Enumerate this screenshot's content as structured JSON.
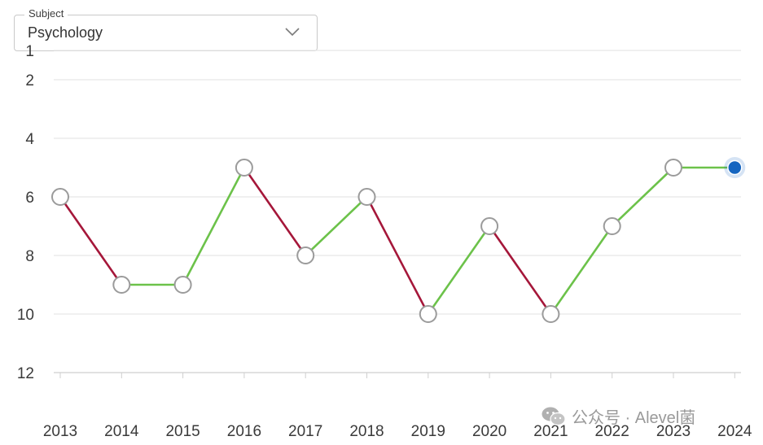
{
  "dropdown": {
    "label": "Subject",
    "value": "Psychology"
  },
  "watermark_text": "公众号 · Alevel菌",
  "colors": {
    "up": "#6cc24a",
    "down": "#a5173a",
    "grid": "#e6e6e6",
    "current": "#1565c0"
  },
  "chart_data": {
    "type": "line",
    "title": "",
    "xlabel": "",
    "ylabel": "",
    "y_inverted": true,
    "ylim": [
      1,
      12
    ],
    "y_ticks": [
      1,
      2,
      4,
      6,
      8,
      10,
      12
    ],
    "categories": [
      "2013",
      "2014",
      "2015",
      "2016",
      "2017",
      "2018",
      "2019",
      "2020",
      "2021",
      "2022",
      "2023",
      "2024"
    ],
    "series": [
      {
        "values": [
          6,
          9,
          9,
          5,
          8,
          6,
          10,
          7,
          10,
          7,
          5,
          5
        ]
      }
    ],
    "highlighted_point": "2024",
    "grid": true
  }
}
